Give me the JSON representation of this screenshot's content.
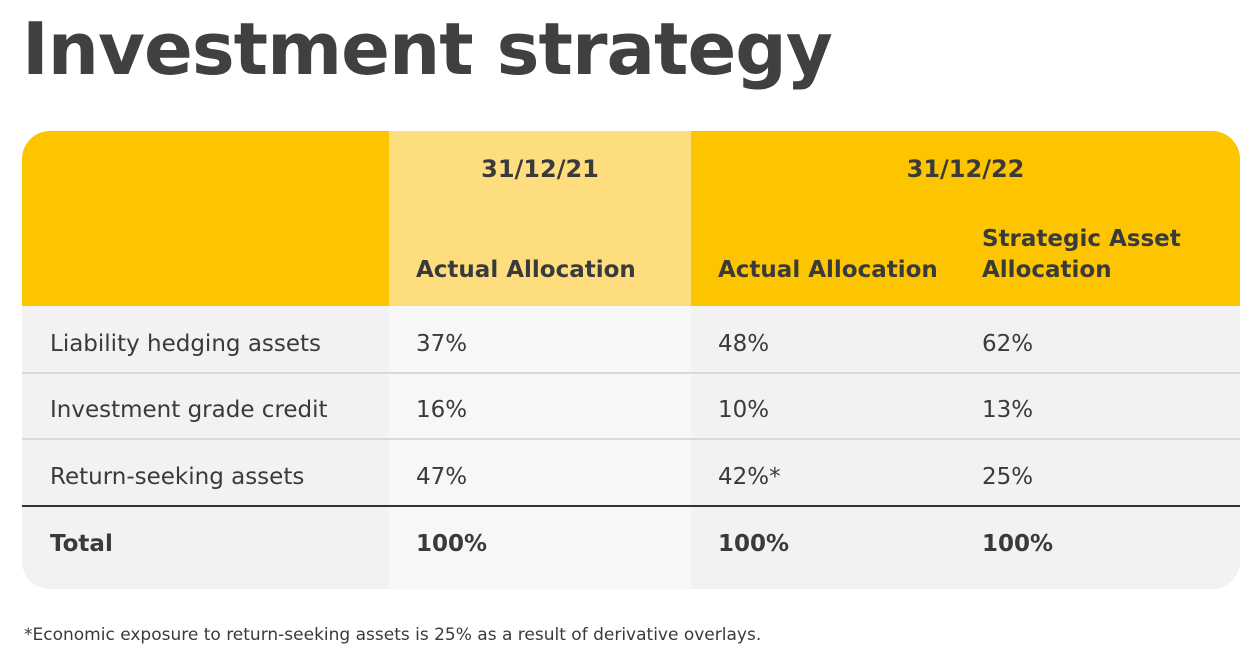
{
  "page": {
    "title": "Investment strategy"
  },
  "table": {
    "dates": [
      "31/12/21",
      "31/12/22"
    ],
    "column_headers": [
      "Actual Allocation",
      "Actual Allocation",
      "Strategic Asset Allocation"
    ],
    "rows": [
      {
        "label": "Liability hedging assets",
        "values": [
          "37%",
          "48%",
          "62%"
        ]
      },
      {
        "label": "Investment grade credit",
        "values": [
          "16%",
          "10%",
          "13%"
        ]
      },
      {
        "label": "Return-seeking assets",
        "values": [
          "47%",
          "42%*",
          "25%"
        ]
      },
      {
        "label": "Total",
        "values": [
          "100%",
          "100%",
          "100%"
        ]
      }
    ]
  },
  "footnote": "*Economic exposure to return-seeking assets is 25% as a result of derivative overlays.",
  "colors": {
    "header_yellow": "#fcc500",
    "header_light_yellow": "#fedd7f",
    "body_grey": "#f2f2f2",
    "text": "#3a3a3a"
  }
}
